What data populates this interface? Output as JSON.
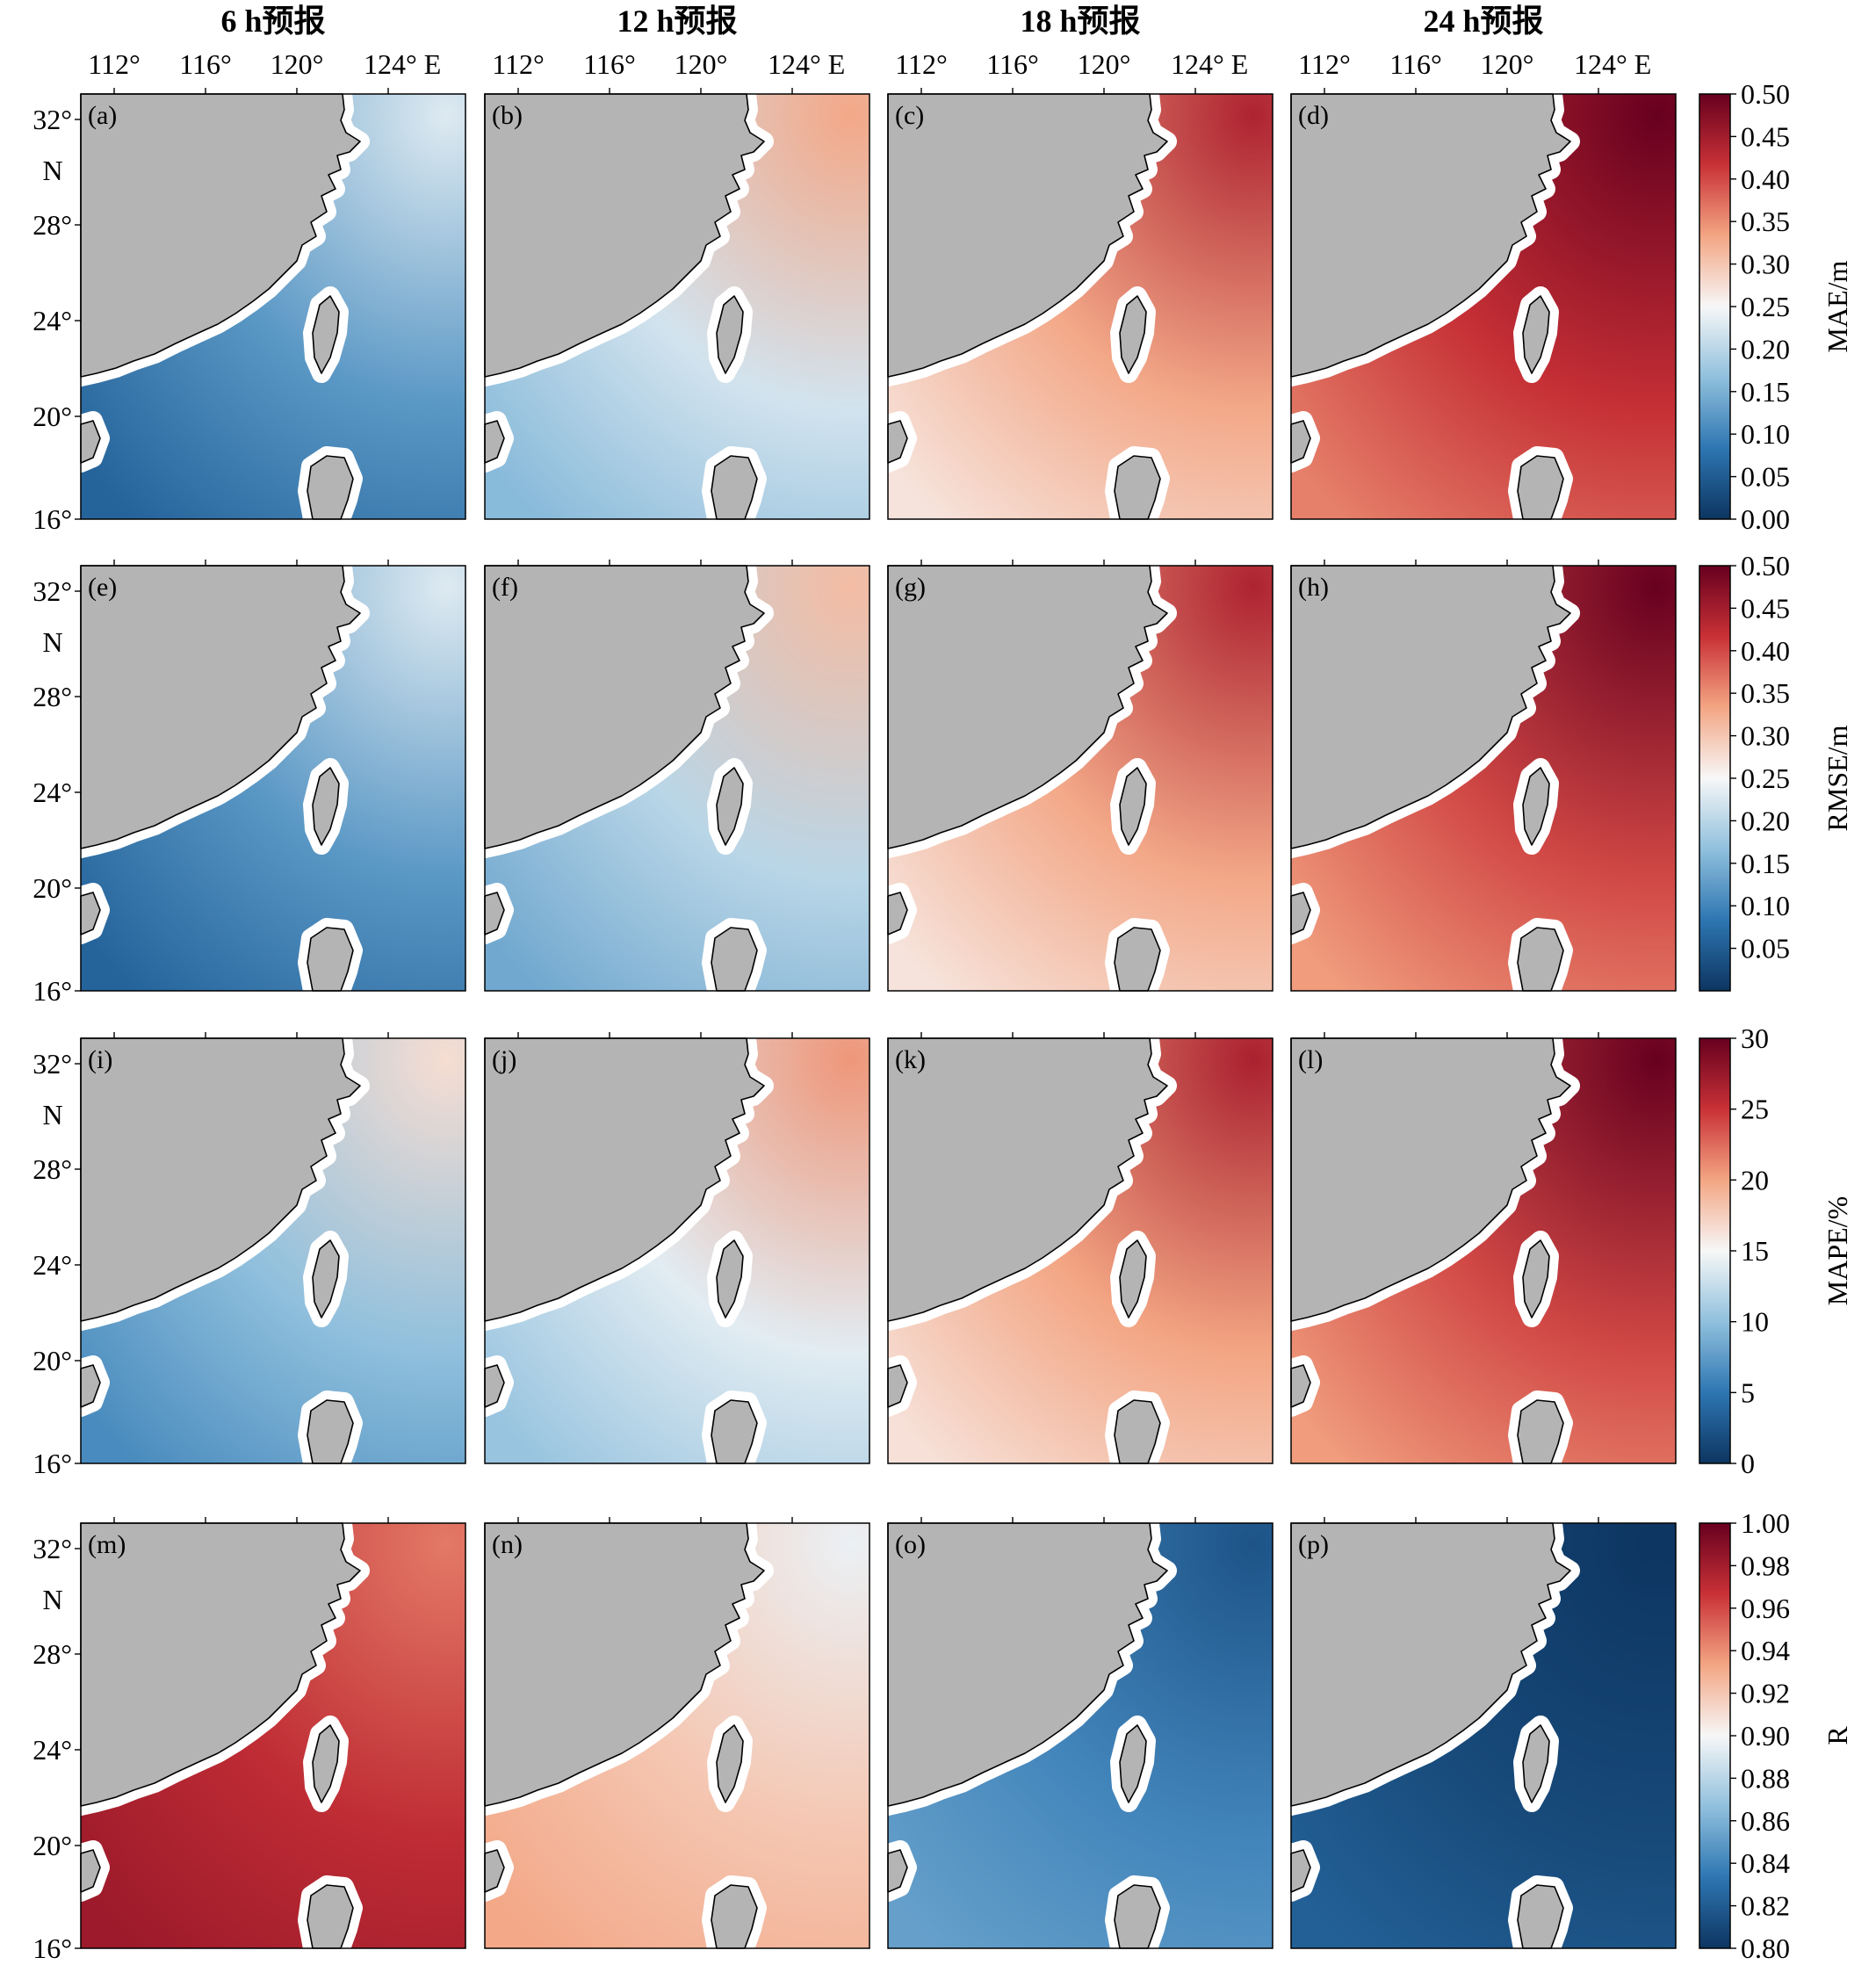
{
  "column_titles": [
    "6 h预报",
    "12 h预报",
    "18 h预报",
    "24 h预报"
  ],
  "lon_ticks": [
    "112°",
    "116°",
    "120°",
    "124° E"
  ],
  "lat_ticks": [
    "32°",
    "N",
    "28°",
    "24°",
    "20°",
    "16°"
  ],
  "rows": [
    {
      "metric": "MAE/m",
      "cbar_ticks": [
        "0.50",
        "0.45",
        "0.40",
        "0.35",
        "0.30",
        "0.25",
        "0.20",
        "0.15",
        "0.10",
        "0.05",
        "0.00"
      ],
      "panels": [
        {
          "label": "(a)",
          "level": 0.12
        },
        {
          "label": "(b)",
          "level": 0.22
        },
        {
          "label": "(c)",
          "level": 0.33
        },
        {
          "label": "(d)",
          "level": 0.42
        }
      ]
    },
    {
      "metric": "RMSE/m",
      "cbar_ticks": [
        "0.50",
        "0.45",
        "0.40",
        "0.35",
        "0.30",
        "0.25",
        "0.20",
        "0.15",
        "0.10",
        "0.05"
      ],
      "panels": [
        {
          "label": "(e)",
          "level": 0.12
        },
        {
          "label": "(f)",
          "level": 0.2
        },
        {
          "label": "(g)",
          "level": 0.33
        },
        {
          "label": "(h)",
          "level": 0.4
        }
      ]
    },
    {
      "metric": "MAPE/%",
      "cbar_ticks": [
        "30",
        "25",
        "20",
        "15",
        "10",
        "5",
        "0"
      ],
      "panels": [
        {
          "label": "(i)",
          "level": 10
        },
        {
          "label": "(j)",
          "level": 14
        },
        {
          "label": "(k)",
          "level": 20
        },
        {
          "label": "(l)",
          "level": 24
        }
      ]
    },
    {
      "metric": "R",
      "cbar_ticks": [
        "1.00",
        "0.98",
        "0.96",
        "0.94",
        "0.92",
        "0.90",
        "0.88",
        "0.86",
        "0.84",
        "0.82",
        "0.80"
      ],
      "panels": [
        {
          "label": "(m)",
          "level": 0.97
        },
        {
          "label": "(n)",
          "level": 0.92
        },
        {
          "label": "(o)",
          "level": 0.84
        },
        {
          "label": "(p)",
          "level": 0.81
        }
      ]
    }
  ],
  "colormap": [
    "#0d3561",
    "#2e76b2",
    "#90c0dd",
    "#f7f7f7",
    "#f3a583",
    "#c93136",
    "#67001f"
  ],
  "land_color": "#b4b4b4"
}
